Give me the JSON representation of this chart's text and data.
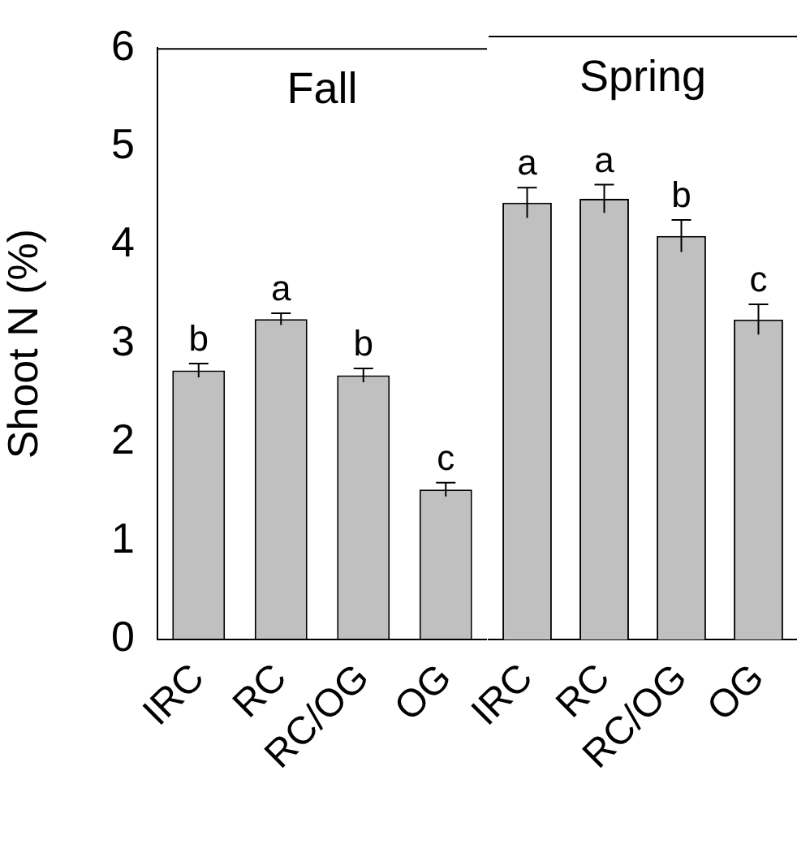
{
  "chart_data": [
    {
      "type": "bar",
      "title": "Fall",
      "ylabel": "Shoot N (%)",
      "categories": [
        "IRC",
        "RC",
        "RC/OG",
        "OG"
      ],
      "values": [
        2.73,
        3.25,
        2.68,
        1.52
      ],
      "errors": [
        0.07,
        0.06,
        0.07,
        0.07
      ],
      "color": "#c0c0c0",
      "ylim": [
        0,
        6
      ],
      "yticks": [
        0,
        1,
        2,
        3,
        4,
        5,
        6
      ],
      "grid": false,
      "legend": false,
      "annotations": [
        {
          "text": "b",
          "x": "IRC",
          "y": 2.8
        },
        {
          "text": "a",
          "x": "RC",
          "y": 3.31
        },
        {
          "text": "b",
          "x": "RC/OG",
          "y": 2.75
        },
        {
          "text": "c",
          "x": "OG",
          "y": 1.59
        }
      ]
    },
    {
      "type": "bar",
      "title": "Spring",
      "categories": [
        "IRC",
        "RC",
        "RC/OG",
        "OG"
      ],
      "values": [
        4.34,
        4.38,
        4.01,
        3.18
      ],
      "errors": [
        0.15,
        0.14,
        0.16,
        0.15
      ],
      "color": "#c0c0c0",
      "ylim": [
        0,
        6
      ],
      "yticks": [
        0,
        1,
        2,
        3,
        4,
        5,
        6
      ],
      "grid": false,
      "legend": false,
      "tick_labels": "x",
      "annotations": [
        {
          "text": "a",
          "x": "IRC",
          "y": 4.49
        },
        {
          "text": "a",
          "x": "RC",
          "y": 4.52
        },
        {
          "text": "b",
          "x": "RC/OG",
          "y": 4.17
        },
        {
          "text": "c",
          "x": "OG",
          "y": 3.33
        }
      ]
    }
  ]
}
